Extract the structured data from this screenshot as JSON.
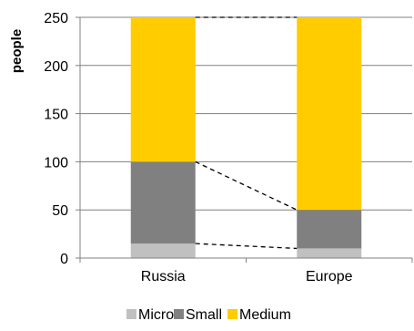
{
  "chart_data": {
    "type": "bar",
    "stacked": true,
    "categories": [
      "Russia",
      "Europe"
    ],
    "series": [
      {
        "name": "Micro",
        "values": [
          15,
          10
        ],
        "color": "#c0c0c0"
      },
      {
        "name": "Small",
        "values": [
          85,
          40
        ],
        "color": "#808080"
      },
      {
        "name": "Medium",
        "values": [
          150,
          200
        ],
        "color": "#ffcc00"
      }
    ],
    "ylabel": "people",
    "xlabel": "",
    "ylim": [
      0,
      250
    ],
    "yticks": [
      0,
      50,
      100,
      150,
      200,
      250
    ],
    "grid": true,
    "gridline_color": "#808080",
    "connector_lines": "dashed, linking the cumulative top of each segment between the two bars",
    "legend_position": "bottom"
  }
}
